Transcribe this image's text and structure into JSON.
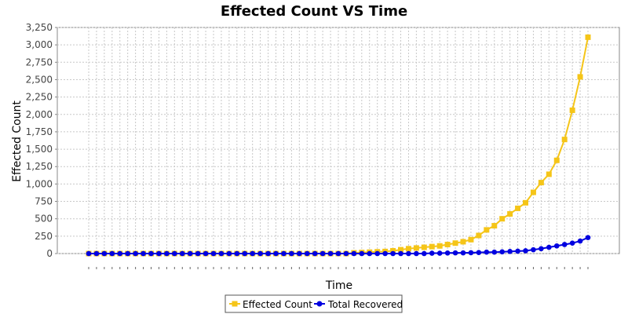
{
  "chart_data": {
    "type": "line",
    "title": "Effected Count VS Time",
    "xlabel": "Time",
    "ylabel": "Effected Count",
    "ylim": [
      0,
      3250
    ],
    "yticks": [
      "0",
      "250",
      "500",
      "750",
      "1,000",
      "1,250",
      "1,500",
      "1,750",
      "2,000",
      "2,250",
      "2,500",
      "2,750",
      "3,000",
      "3,250"
    ],
    "grid": true,
    "legend": "bottom",
    "series": [
      {
        "name": "Effected Count",
        "color": "#f5c518",
        "marker": "square",
        "values": [
          0,
          0,
          0,
          0,
          0,
          0,
          0,
          0,
          0,
          0,
          0,
          0,
          0,
          0,
          0,
          0,
          0,
          0,
          0,
          0,
          0,
          0,
          0,
          0,
          0,
          0,
          0,
          0,
          0,
          0,
          0,
          0,
          0,
          0,
          10,
          15,
          20,
          25,
          30,
          40,
          55,
          70,
          80,
          90,
          100,
          110,
          130,
          150,
          170,
          200,
          260,
          340,
          400,
          500,
          570,
          650,
          730,
          880,
          1020,
          1140,
          1340,
          1640,
          2060,
          2540,
          3110
        ]
      },
      {
        "name": "Total Recovered",
        "color": "#0000e0",
        "marker": "circle",
        "values": [
          0,
          0,
          0,
          0,
          0,
          0,
          0,
          0,
          0,
          0,
          0,
          0,
          0,
          0,
          0,
          0,
          0,
          0,
          0,
          0,
          0,
          0,
          0,
          0,
          0,
          0,
          0,
          0,
          0,
          0,
          0,
          0,
          0,
          0,
          0,
          0,
          0,
          0,
          0,
          0,
          0,
          0,
          0,
          0,
          5,
          5,
          8,
          10,
          10,
          12,
          15,
          20,
          20,
          25,
          30,
          35,
          40,
          55,
          70,
          90,
          110,
          130,
          150,
          180,
          230
        ]
      }
    ]
  }
}
